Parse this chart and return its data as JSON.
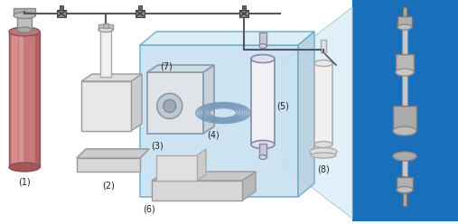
{
  "fig_width": 5.07,
  "fig_height": 2.48,
  "dpi": 100,
  "bg_color": "#ffffff",
  "pipe_color": "#555566",
  "box7_face": "#c5dff0",
  "box7_edge": "#6aadcc",
  "photo_bg": "#1a6fbb",
  "trap_face": "#ddeef8",
  "cyl_body": "#c87878",
  "cyl_shine": "#e8a8a8",
  "cyl_dark": "#a85555",
  "gray_light": "#e8e8e8",
  "gray_mid": "#cccccc",
  "gray_dark": "#aaaaaa",
  "metal_light": "#d4d4d4",
  "metal_mid": "#b8b8b8",
  "metal_dark": "#909090",
  "label_color": "#222222",
  "label_fs": 7,
  "coil_color": "#7799bb",
  "vessel5_face": "#f0f0f5",
  "vessel5_edge": "#8888aa"
}
